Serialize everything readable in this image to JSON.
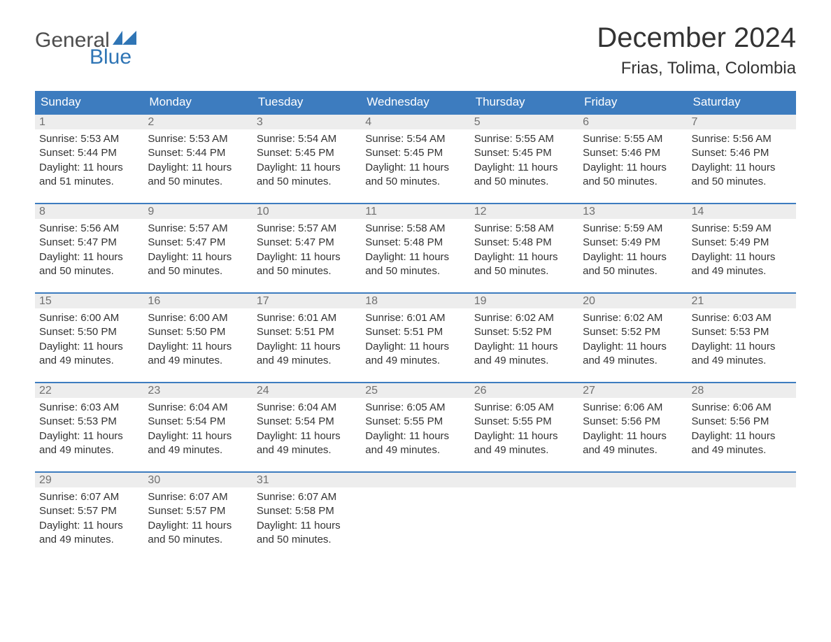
{
  "logo": {
    "word1": "General",
    "word2": "Blue"
  },
  "title": "December 2024",
  "location": "Frias, Tolima, Colombia",
  "colors": {
    "header_bg": "#3d7cbf",
    "header_text": "#ffffff",
    "daynum_bg": "#ededed",
    "daynum_text": "#707070",
    "body_text": "#333333",
    "logo_gray": "#4d4d4d",
    "logo_blue": "#2f75b5",
    "page_bg": "#ffffff"
  },
  "weekdays": [
    "Sunday",
    "Monday",
    "Tuesday",
    "Wednesday",
    "Thursday",
    "Friday",
    "Saturday"
  ],
  "weeks": [
    [
      {
        "n": "1",
        "sunrise": "Sunrise: 5:53 AM",
        "sunset": "Sunset: 5:44 PM",
        "day1": "Daylight: 11 hours",
        "day2": "and 51 minutes."
      },
      {
        "n": "2",
        "sunrise": "Sunrise: 5:53 AM",
        "sunset": "Sunset: 5:44 PM",
        "day1": "Daylight: 11 hours",
        "day2": "and 50 minutes."
      },
      {
        "n": "3",
        "sunrise": "Sunrise: 5:54 AM",
        "sunset": "Sunset: 5:45 PM",
        "day1": "Daylight: 11 hours",
        "day2": "and 50 minutes."
      },
      {
        "n": "4",
        "sunrise": "Sunrise: 5:54 AM",
        "sunset": "Sunset: 5:45 PM",
        "day1": "Daylight: 11 hours",
        "day2": "and 50 minutes."
      },
      {
        "n": "5",
        "sunrise": "Sunrise: 5:55 AM",
        "sunset": "Sunset: 5:45 PM",
        "day1": "Daylight: 11 hours",
        "day2": "and 50 minutes."
      },
      {
        "n": "6",
        "sunrise": "Sunrise: 5:55 AM",
        "sunset": "Sunset: 5:46 PM",
        "day1": "Daylight: 11 hours",
        "day2": "and 50 minutes."
      },
      {
        "n": "7",
        "sunrise": "Sunrise: 5:56 AM",
        "sunset": "Sunset: 5:46 PM",
        "day1": "Daylight: 11 hours",
        "day2": "and 50 minutes."
      }
    ],
    [
      {
        "n": "8",
        "sunrise": "Sunrise: 5:56 AM",
        "sunset": "Sunset: 5:47 PM",
        "day1": "Daylight: 11 hours",
        "day2": "and 50 minutes."
      },
      {
        "n": "9",
        "sunrise": "Sunrise: 5:57 AM",
        "sunset": "Sunset: 5:47 PM",
        "day1": "Daylight: 11 hours",
        "day2": "and 50 minutes."
      },
      {
        "n": "10",
        "sunrise": "Sunrise: 5:57 AM",
        "sunset": "Sunset: 5:47 PM",
        "day1": "Daylight: 11 hours",
        "day2": "and 50 minutes."
      },
      {
        "n": "11",
        "sunrise": "Sunrise: 5:58 AM",
        "sunset": "Sunset: 5:48 PM",
        "day1": "Daylight: 11 hours",
        "day2": "and 50 minutes."
      },
      {
        "n": "12",
        "sunrise": "Sunrise: 5:58 AM",
        "sunset": "Sunset: 5:48 PM",
        "day1": "Daylight: 11 hours",
        "day2": "and 50 minutes."
      },
      {
        "n": "13",
        "sunrise": "Sunrise: 5:59 AM",
        "sunset": "Sunset: 5:49 PM",
        "day1": "Daylight: 11 hours",
        "day2": "and 50 minutes."
      },
      {
        "n": "14",
        "sunrise": "Sunrise: 5:59 AM",
        "sunset": "Sunset: 5:49 PM",
        "day1": "Daylight: 11 hours",
        "day2": "and 49 minutes."
      }
    ],
    [
      {
        "n": "15",
        "sunrise": "Sunrise: 6:00 AM",
        "sunset": "Sunset: 5:50 PM",
        "day1": "Daylight: 11 hours",
        "day2": "and 49 minutes."
      },
      {
        "n": "16",
        "sunrise": "Sunrise: 6:00 AM",
        "sunset": "Sunset: 5:50 PM",
        "day1": "Daylight: 11 hours",
        "day2": "and 49 minutes."
      },
      {
        "n": "17",
        "sunrise": "Sunrise: 6:01 AM",
        "sunset": "Sunset: 5:51 PM",
        "day1": "Daylight: 11 hours",
        "day2": "and 49 minutes."
      },
      {
        "n": "18",
        "sunrise": "Sunrise: 6:01 AM",
        "sunset": "Sunset: 5:51 PM",
        "day1": "Daylight: 11 hours",
        "day2": "and 49 minutes."
      },
      {
        "n": "19",
        "sunrise": "Sunrise: 6:02 AM",
        "sunset": "Sunset: 5:52 PM",
        "day1": "Daylight: 11 hours",
        "day2": "and 49 minutes."
      },
      {
        "n": "20",
        "sunrise": "Sunrise: 6:02 AM",
        "sunset": "Sunset: 5:52 PM",
        "day1": "Daylight: 11 hours",
        "day2": "and 49 minutes."
      },
      {
        "n": "21",
        "sunrise": "Sunrise: 6:03 AM",
        "sunset": "Sunset: 5:53 PM",
        "day1": "Daylight: 11 hours",
        "day2": "and 49 minutes."
      }
    ],
    [
      {
        "n": "22",
        "sunrise": "Sunrise: 6:03 AM",
        "sunset": "Sunset: 5:53 PM",
        "day1": "Daylight: 11 hours",
        "day2": "and 49 minutes."
      },
      {
        "n": "23",
        "sunrise": "Sunrise: 6:04 AM",
        "sunset": "Sunset: 5:54 PM",
        "day1": "Daylight: 11 hours",
        "day2": "and 49 minutes."
      },
      {
        "n": "24",
        "sunrise": "Sunrise: 6:04 AM",
        "sunset": "Sunset: 5:54 PM",
        "day1": "Daylight: 11 hours",
        "day2": "and 49 minutes."
      },
      {
        "n": "25",
        "sunrise": "Sunrise: 6:05 AM",
        "sunset": "Sunset: 5:55 PM",
        "day1": "Daylight: 11 hours",
        "day2": "and 49 minutes."
      },
      {
        "n": "26",
        "sunrise": "Sunrise: 6:05 AM",
        "sunset": "Sunset: 5:55 PM",
        "day1": "Daylight: 11 hours",
        "day2": "and 49 minutes."
      },
      {
        "n": "27",
        "sunrise": "Sunrise: 6:06 AM",
        "sunset": "Sunset: 5:56 PM",
        "day1": "Daylight: 11 hours",
        "day2": "and 49 minutes."
      },
      {
        "n": "28",
        "sunrise": "Sunrise: 6:06 AM",
        "sunset": "Sunset: 5:56 PM",
        "day1": "Daylight: 11 hours",
        "day2": "and 49 minutes."
      }
    ],
    [
      {
        "n": "29",
        "sunrise": "Sunrise: 6:07 AM",
        "sunset": "Sunset: 5:57 PM",
        "day1": "Daylight: 11 hours",
        "day2": "and 49 minutes."
      },
      {
        "n": "30",
        "sunrise": "Sunrise: 6:07 AM",
        "sunset": "Sunset: 5:57 PM",
        "day1": "Daylight: 11 hours",
        "day2": "and 50 minutes."
      },
      {
        "n": "31",
        "sunrise": "Sunrise: 6:07 AM",
        "sunset": "Sunset: 5:58 PM",
        "day1": "Daylight: 11 hours",
        "day2": "and 50 minutes."
      },
      null,
      null,
      null,
      null
    ]
  ]
}
